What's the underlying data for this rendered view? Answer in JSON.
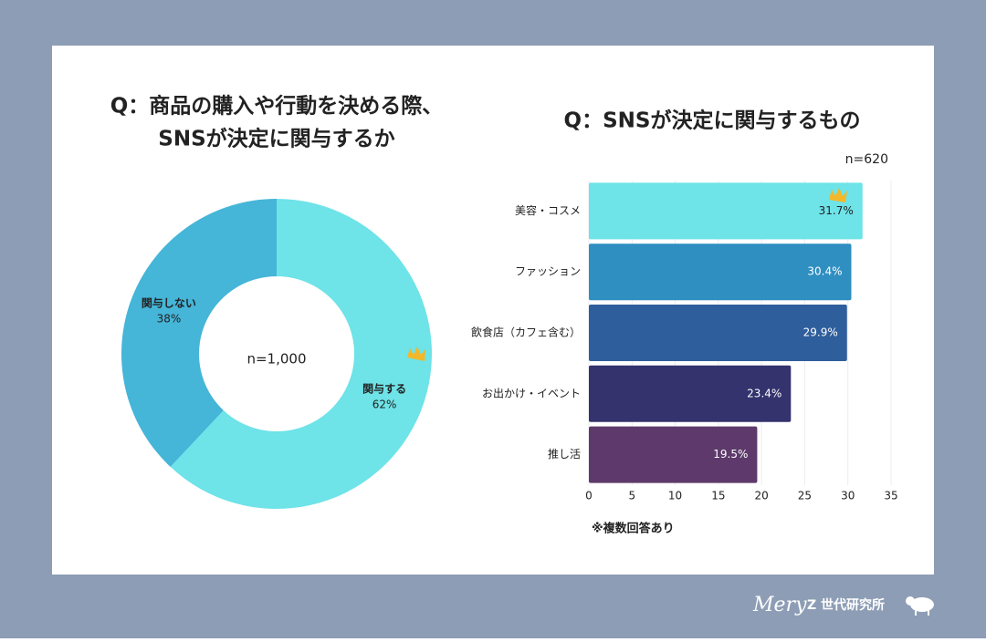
{
  "chart_data": [
    {
      "type": "donut",
      "title": [
        "Q：商品の購入や行動を決める際、",
        "SNSが決定に関与するか"
      ],
      "center_label": "n=1,000",
      "categories": [
        "関与する",
        "関与しない"
      ],
      "values": [
        62,
        38
      ],
      "value_labels": [
        "62%",
        "38%"
      ],
      "colors": [
        "#6ee3e8",
        "#45b5d8"
      ]
    },
    {
      "type": "barh",
      "title": "Q：SNSが決定に関与するもの",
      "annotation": "n=620",
      "categories": [
        "美容・コスメ",
        "ファッション",
        "飲食店（カフェ含む）",
        "お出かけ・イベント",
        "推し活"
      ],
      "values": [
        31.7,
        30.4,
        29.9,
        23.4,
        19.5
      ],
      "value_labels": [
        "31.7%",
        "30.4%",
        "29.9%",
        "23.4%",
        "19.5%"
      ],
      "colors": [
        "#6ee3e8",
        "#2f8fc1",
        "#2f5e9c",
        "#34336e",
        "#5d3a6b"
      ],
      "xlim": [
        0,
        35
      ],
      "xticks": [
        0,
        5,
        10,
        15,
        20,
        25,
        30,
        35
      ],
      "grid": true,
      "note": "※複数回答あり"
    }
  ],
  "footer": {
    "brand": "Mery",
    "text": "Z 世代研究所"
  }
}
